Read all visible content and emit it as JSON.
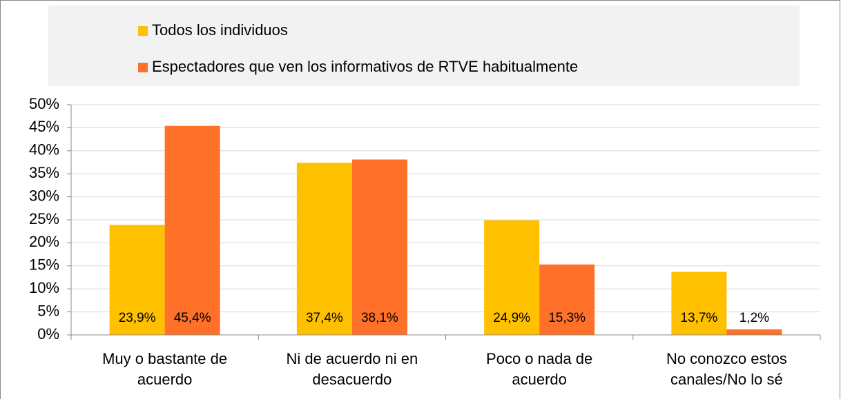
{
  "chart_data": {
    "type": "bar",
    "categories": [
      "Muy o bastante de acuerdo",
      "Ni de acuerdo ni en desacuerdo",
      "Poco o nada de acuerdo",
      "No conozco estos canales/No lo sé"
    ],
    "series": [
      {
        "name": "Todos los individuos",
        "color": "#ffc000",
        "values": [
          23.9,
          37.4,
          24.9,
          13.7
        ],
        "value_labels": [
          "23,9%",
          "37,4%",
          "24,9%",
          "13,7%"
        ]
      },
      {
        "name": "Espectadores que ven los informativos de RTVE habitualmente",
        "color": "#ff7028",
        "values": [
          45.4,
          38.1,
          15.3,
          1.2
        ],
        "value_labels": [
          "45,4%",
          "38,1%",
          "15,3%",
          "1,2%"
        ]
      }
    ],
    "ylim": [
      0,
      50
    ],
    "yticks": [
      {
        "value": 0,
        "label": "0%"
      },
      {
        "value": 5,
        "label": "5%"
      },
      {
        "value": 10,
        "label": "10%"
      },
      {
        "value": 15,
        "label": "15%"
      },
      {
        "value": 20,
        "label": "20%"
      },
      {
        "value": 25,
        "label": "25%"
      },
      {
        "value": 30,
        "label": "30%"
      },
      {
        "value": 35,
        "label": "35%"
      },
      {
        "value": 40,
        "label": "40%"
      },
      {
        "value": 45,
        "label": "45%"
      },
      {
        "value": 50,
        "label": "50%"
      }
    ],
    "grid": true
  }
}
